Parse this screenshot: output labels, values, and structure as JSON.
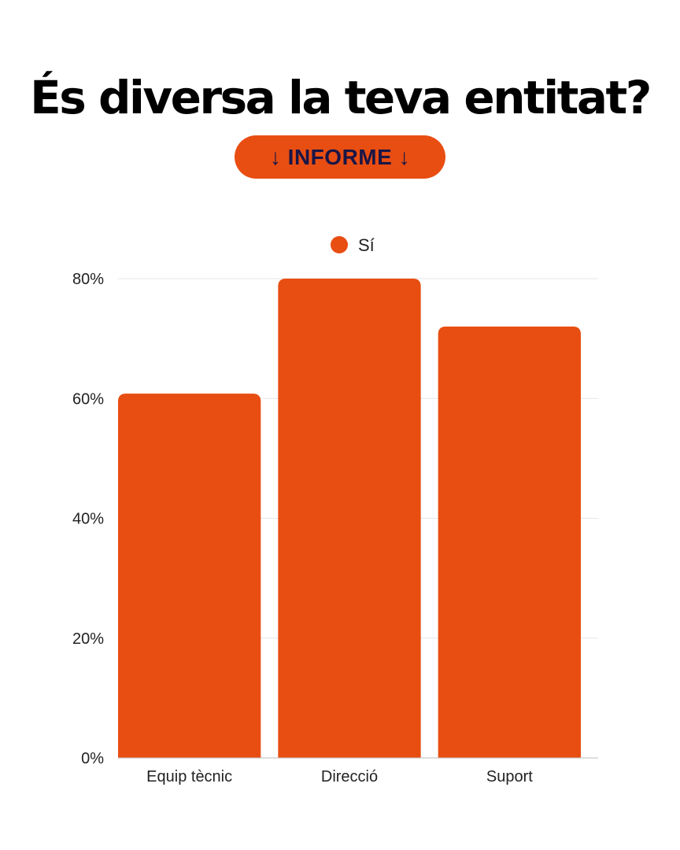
{
  "header": {
    "title": "És diversa la teva entitat?",
    "badge_label": "↓ INFORME ↓"
  },
  "colors": {
    "accent": "#E84E12",
    "badge_text": "#1A1646",
    "grid": "#E6E6E6",
    "text": "#222222"
  },
  "chart_data": {
    "type": "bar",
    "categories": [
      "Equip tècnic",
      "Direcció",
      "Suport"
    ],
    "series": [
      {
        "name": "Sí",
        "values": [
          60.8,
          80,
          72
        ]
      }
    ],
    "ylim": [
      0,
      80
    ],
    "yticks": [
      0,
      20,
      40,
      60,
      80
    ],
    "ytick_labels": [
      "0%",
      "20%",
      "40%",
      "60%",
      "80%"
    ],
    "grid": true,
    "legend_position": "top-center",
    "xlabel": "",
    "ylabel": ""
  }
}
